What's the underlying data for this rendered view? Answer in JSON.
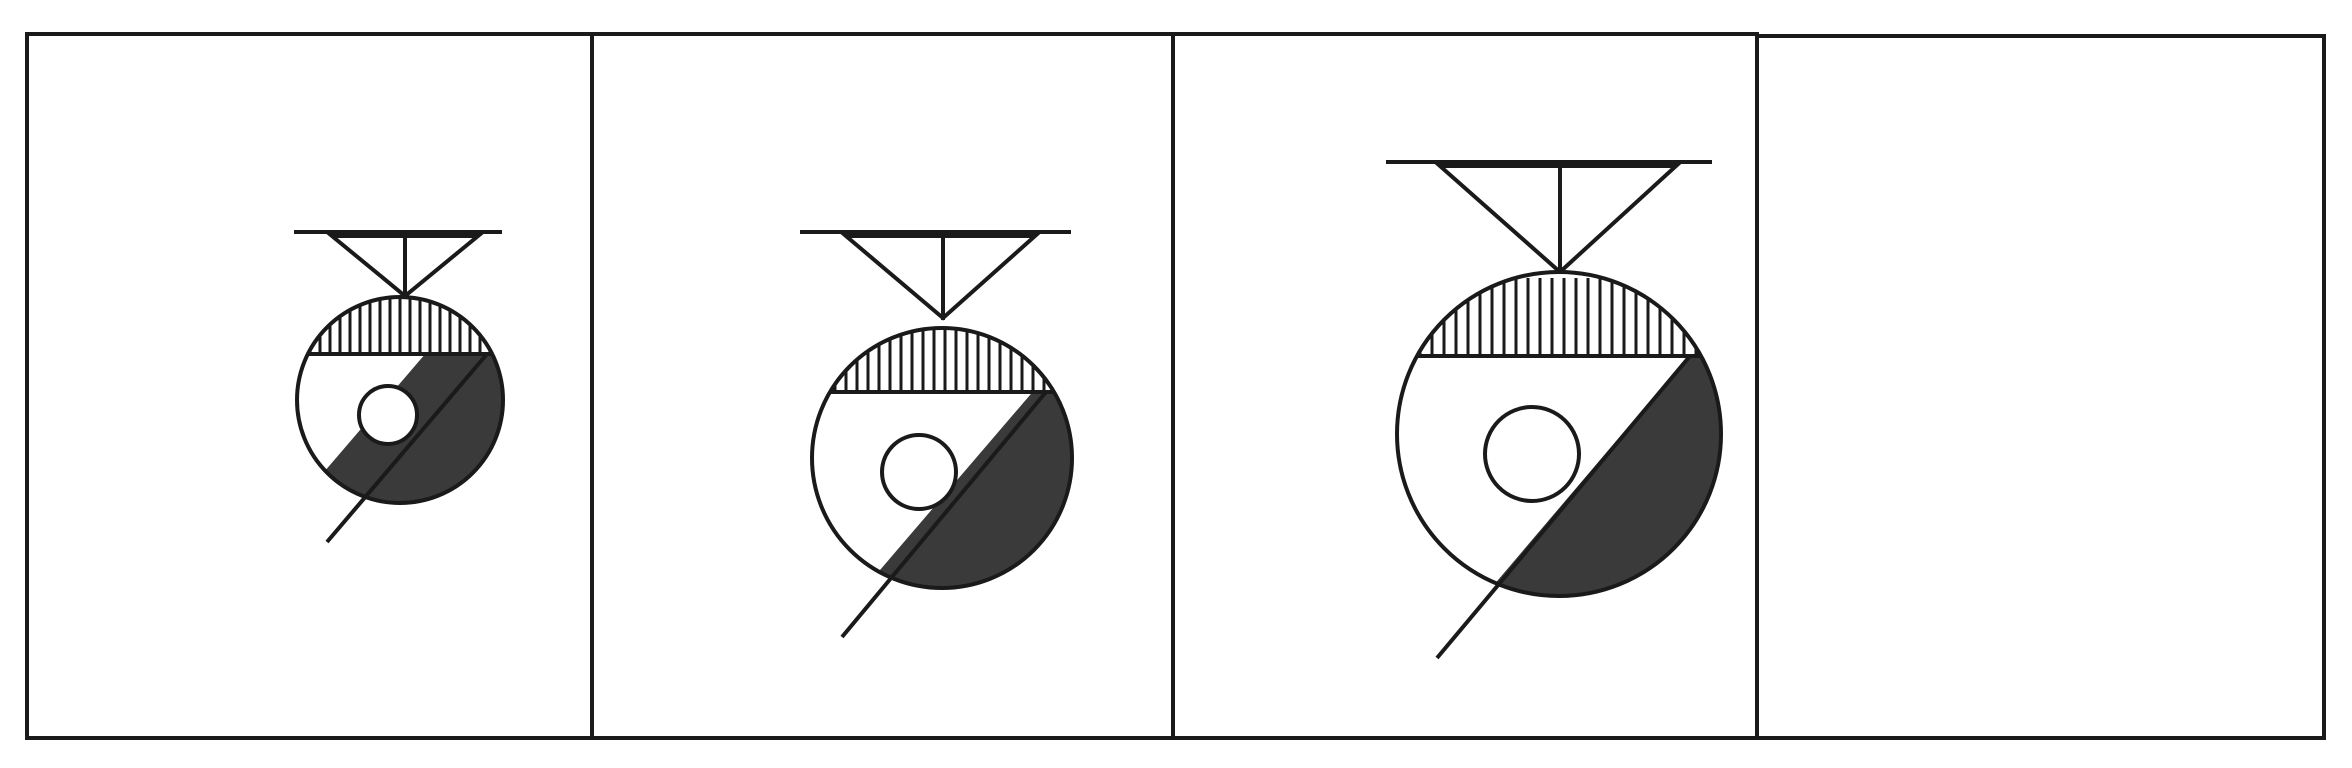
{
  "puzzle": {
    "panel_count": 4,
    "blank_panel": 4,
    "colors": {
      "stroke": "#1a1a1a",
      "dark_fill": "#3a3a3a",
      "background": "#ffffff"
    },
    "figures": [
      {
        "panel": 1,
        "scale": 1.0,
        "icon": "pendant-circle-icon"
      },
      {
        "panel": 2,
        "scale": 1.27,
        "icon": "pendant-circle-icon"
      },
      {
        "panel": 3,
        "scale": 1.57,
        "icon": "pendant-circle-icon"
      }
    ]
  }
}
